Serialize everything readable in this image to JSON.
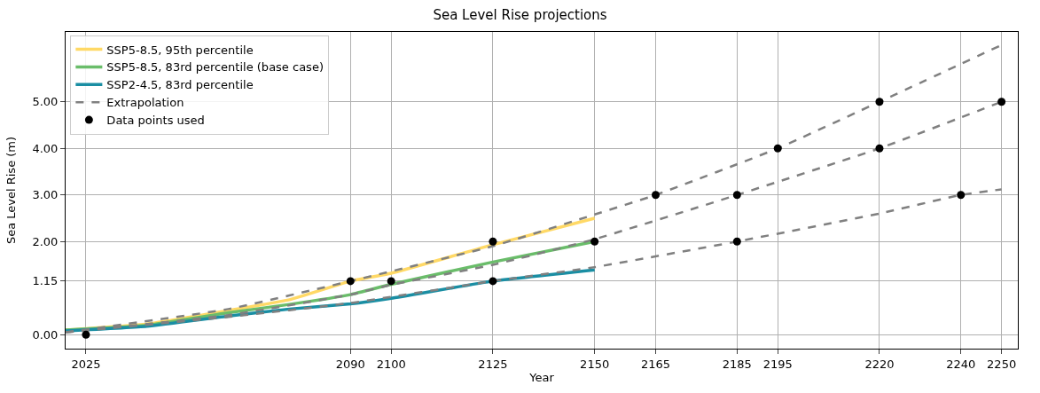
{
  "chart_data": {
    "type": "line",
    "title": "Sea Level Rise projections",
    "xlabel": "Year",
    "ylabel": "Sea Level Rise (m)",
    "xlim": [
      2020,
      2254
    ],
    "ylim": [
      -0.3,
      6.5
    ],
    "xticks": [
      2025,
      2090,
      2100,
      2125,
      2150,
      2165,
      2185,
      2195,
      2220,
      2240,
      2250
    ],
    "yticks": [
      {
        "value": 0,
        "label": "0.00"
      },
      {
        "value": 1.15,
        "label": "1.15"
      },
      {
        "value": 2,
        "label": "2.00"
      },
      {
        "value": 3,
        "label": "3.00"
      },
      {
        "value": 4,
        "label": "4.00"
      },
      {
        "value": 5,
        "label": "5.00"
      }
    ],
    "grid": true,
    "legend": "top left",
    "series": [
      {
        "name": "SSP5-8.5, 95th percentile",
        "line_style": "solid",
        "color": "#ffd966",
        "x": [
          2020,
          2040,
          2060,
          2075,
          2090,
          2100,
          2125,
          2150
        ],
        "values": [
          0.1,
          0.23,
          0.52,
          0.75,
          1.15,
          1.32,
          1.93,
          2.5
        ]
      },
      {
        "name": "SSP5-8.5, 83rd percentile (base case)",
        "line_style": "solid",
        "color": "#6abd6a",
        "x": [
          2020,
          2040,
          2060,
          2075,
          2090,
          2100,
          2125,
          2150
        ],
        "values": [
          0.1,
          0.2,
          0.47,
          0.65,
          0.86,
          1.08,
          1.56,
          2.0
        ]
      },
      {
        "name": "SSP2-4.5, 83rd percentile",
        "line_style": "solid",
        "color": "#1a8ea3",
        "x": [
          2020,
          2040,
          2060,
          2075,
          2090,
          2100,
          2125,
          2150
        ],
        "values": [
          0.08,
          0.18,
          0.4,
          0.55,
          0.66,
          0.78,
          1.15,
          1.39
        ]
      },
      {
        "name": "Extrapolation",
        "line_style": "dashed",
        "color": "#808080",
        "x": [
          2020,
          2060,
          2090,
          2125,
          2150,
          2165,
          2195,
          2220,
          2250
        ],
        "values": [
          0.05,
          0.55,
          1.15,
          1.9,
          2.58,
          3.0,
          4.0,
          5.0,
          6.22
        ]
      },
      {
        "line_style": "dashed",
        "color": "#808080",
        "x": [
          2020,
          2060,
          2090,
          2100,
          2125,
          2150,
          2185,
          2220,
          2250
        ],
        "values": [
          0.05,
          0.42,
          0.86,
          1.07,
          1.5,
          2.05,
          3.0,
          4.0,
          5.0
        ]
      },
      {
        "line_style": "dashed",
        "color": "#808080",
        "x": [
          2020,
          2060,
          2090,
          2125,
          2150,
          2185,
          2220,
          2240,
          2250
        ],
        "values": [
          0.05,
          0.38,
          0.68,
          1.15,
          1.45,
          2.0,
          2.6,
          3.0,
          3.12
        ]
      },
      {
        "name": "Data points used",
        "type": "scatter",
        "marker": "circle",
        "color": "#000000",
        "x": [
          2025,
          2090,
          2100,
          2125,
          2125,
          2150,
          2165,
          2185,
          2185,
          2195,
          2220,
          2220,
          2240,
          2250
        ],
        "values": [
          0,
          1.15,
          1.15,
          1.15,
          2,
          2,
          3,
          3,
          2,
          4,
          5,
          4,
          3,
          5
        ]
      }
    ]
  }
}
